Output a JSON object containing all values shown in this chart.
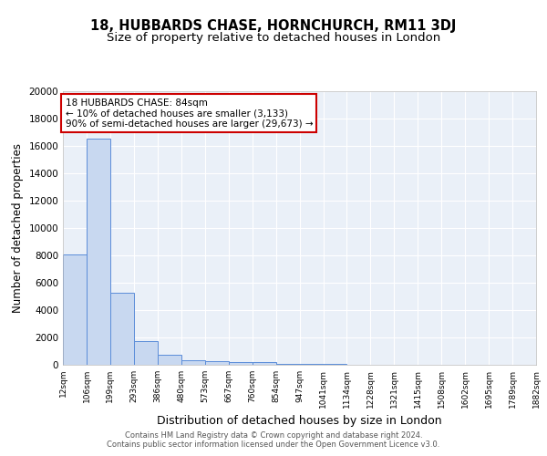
{
  "title": "18, HUBBARDS CHASE, HORNCHURCH, RM11 3DJ",
  "subtitle": "Size of property relative to detached houses in London",
  "xlabel": "Distribution of detached houses by size in London",
  "ylabel": "Number of detached properties",
  "bar_values": [
    8100,
    16500,
    5300,
    1750,
    750,
    350,
    250,
    200,
    175,
    100,
    60,
    40,
    30,
    20,
    15,
    10,
    8,
    5,
    4,
    3
  ],
  "bin_edges": [
    12,
    106,
    199,
    293,
    386,
    480,
    573,
    667,
    760,
    854,
    947,
    1041,
    1134,
    1228,
    1321,
    1415,
    1508,
    1602,
    1695,
    1789,
    1882
  ],
  "tick_labels": [
    "12sqm",
    "106sqm",
    "199sqm",
    "293sqm",
    "386sqm",
    "480sqm",
    "573sqm",
    "667sqm",
    "760sqm",
    "854sqm",
    "947sqm",
    "1041sqm",
    "1134sqm",
    "1228sqm",
    "1321sqm",
    "1415sqm",
    "1508sqm",
    "1602sqm",
    "1695sqm",
    "1789sqm",
    "1882sqm"
  ],
  "bar_color": "#c8d8f0",
  "bar_edge_color": "#5b8dd9",
  "background_color": "#eaf0f8",
  "grid_color": "#ffffff",
  "annotation_text": "18 HUBBARDS CHASE: 84sqm\n← 10% of detached houses are smaller (3,133)\n90% of semi-detached houses are larger (29,673) →",
  "annotation_box_color": "#cc0000",
  "ylim": [
    0,
    20000
  ],
  "yticks": [
    0,
    2000,
    4000,
    6000,
    8000,
    10000,
    12000,
    14000,
    16000,
    18000,
    20000
  ],
  "footer_text": "Contains HM Land Registry data © Crown copyright and database right 2024.\nContains public sector information licensed under the Open Government Licence v3.0.",
  "title_fontsize": 10.5,
  "subtitle_fontsize": 9.5,
  "ylabel_fontsize": 8.5,
  "xlabel_fontsize": 9
}
